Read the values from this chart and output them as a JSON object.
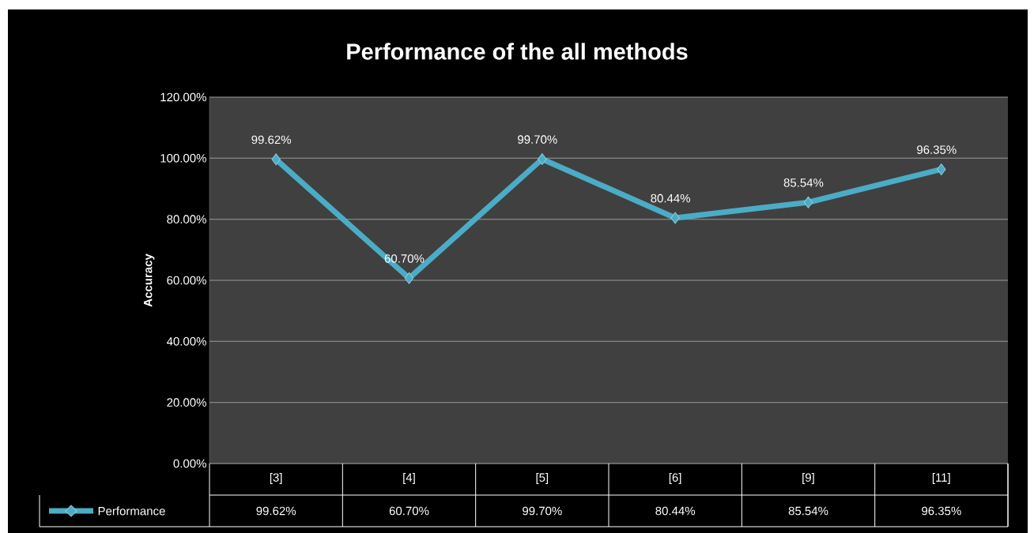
{
  "chart_data": {
    "type": "line",
    "title": "Performance of the all methods",
    "ylabel": "Accuracy",
    "categories": [
      "[3]",
      "[4]",
      "[5]",
      "[6]",
      "[9]",
      "[11]"
    ],
    "series": [
      {
        "name": "Performance",
        "color": "#4bacc6",
        "values": [
          99.62,
          60.7,
          99.7,
          80.44,
          85.54,
          96.35
        ],
        "value_labels": [
          "99.62%",
          "60.70%",
          "99.70%",
          "80.44%",
          "85.54%",
          "96.35%"
        ]
      }
    ],
    "ylim": [
      0,
      120
    ],
    "yticks": [
      {
        "value": 0,
        "label": "0.00%"
      },
      {
        "value": 20,
        "label": "20.00%"
      },
      {
        "value": 40,
        "label": "40.00%"
      },
      {
        "value": 60,
        "label": "60.00%"
      },
      {
        "value": 80,
        "label": "80.00%"
      },
      {
        "value": 100,
        "label": "100.00%"
      },
      {
        "value": 120,
        "label": "120.00%"
      }
    ],
    "grid": "y",
    "legend": "bottom",
    "marker": "diamond"
  }
}
